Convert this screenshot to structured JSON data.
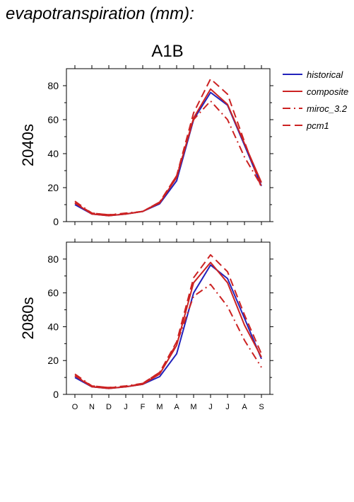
{
  "figure": {
    "title": "evapotranspiration (mm):",
    "scenario": "A1B",
    "legend": [
      "historical",
      "composite",
      "miroc_3.2",
      "pcm1"
    ]
  },
  "chart_data": [
    {
      "type": "line",
      "panel_label": "2040s",
      "categories": [
        "O",
        "N",
        "D",
        "J",
        "F",
        "M",
        "A",
        "M",
        "J",
        "J",
        "A",
        "S"
      ],
      "ylim": [
        0,
        90
      ],
      "yticks": [
        0,
        20,
        40,
        60,
        80
      ],
      "series": [
        {
          "name": "historical",
          "color": "#2222bb",
          "style": "solid",
          "values": [
            10,
            4.5,
            3.5,
            4.5,
            6,
            10.5,
            24,
            60,
            76,
            68.5,
            45,
            21
          ]
        },
        {
          "name": "composite",
          "color": "#cc2222",
          "style": "solid",
          "values": [
            11,
            4.5,
            3.5,
            4.5,
            6,
            11,
            26,
            61,
            78,
            69,
            46,
            23
          ]
        },
        {
          "name": "miroc_3.2",
          "color": "#cc2222",
          "style": "dashdot",
          "values": [
            12,
            5,
            4,
            5,
            6,
            11.5,
            27,
            60,
            71,
            60,
            38,
            21
          ]
        },
        {
          "name": "pcm1",
          "color": "#cc2222",
          "style": "dashed",
          "values": [
            11,
            5,
            4,
            4.5,
            6,
            11.5,
            27,
            64,
            84,
            75,
            47,
            20
          ]
        }
      ]
    },
    {
      "type": "line",
      "panel_label": "2080s",
      "categories": [
        "O",
        "N",
        "D",
        "J",
        "F",
        "M",
        "A",
        "M",
        "J",
        "J",
        "A",
        "S"
      ],
      "ylim": [
        0,
        90
      ],
      "yticks": [
        0,
        20,
        40,
        60,
        80
      ],
      "series": [
        {
          "name": "historical",
          "color": "#2222bb",
          "style": "solid",
          "values": [
            10,
            4.5,
            3.5,
            4.5,
            6,
            10.5,
            24,
            60,
            76.5,
            68.5,
            45,
            21
          ]
        },
        {
          "name": "composite",
          "color": "#cc2222",
          "style": "solid",
          "values": [
            11,
            4.5,
            3.5,
            4.5,
            6,
            12,
            29,
            66,
            78,
            66,
            41,
            22
          ]
        },
        {
          "name": "miroc_3.2",
          "color": "#cc2222",
          "style": "dashdot",
          "values": [
            12,
            5,
            4,
            5,
            6.5,
            13,
            30,
            58,
            65,
            52,
            32,
            16
          ]
        },
        {
          "name": "pcm1",
          "color": "#cc2222",
          "style": "dashed",
          "values": [
            11,
            5,
            4,
            4.5,
            6.5,
            13,
            31,
            69,
            82.5,
            72.5,
            47,
            24
          ]
        }
      ]
    }
  ]
}
